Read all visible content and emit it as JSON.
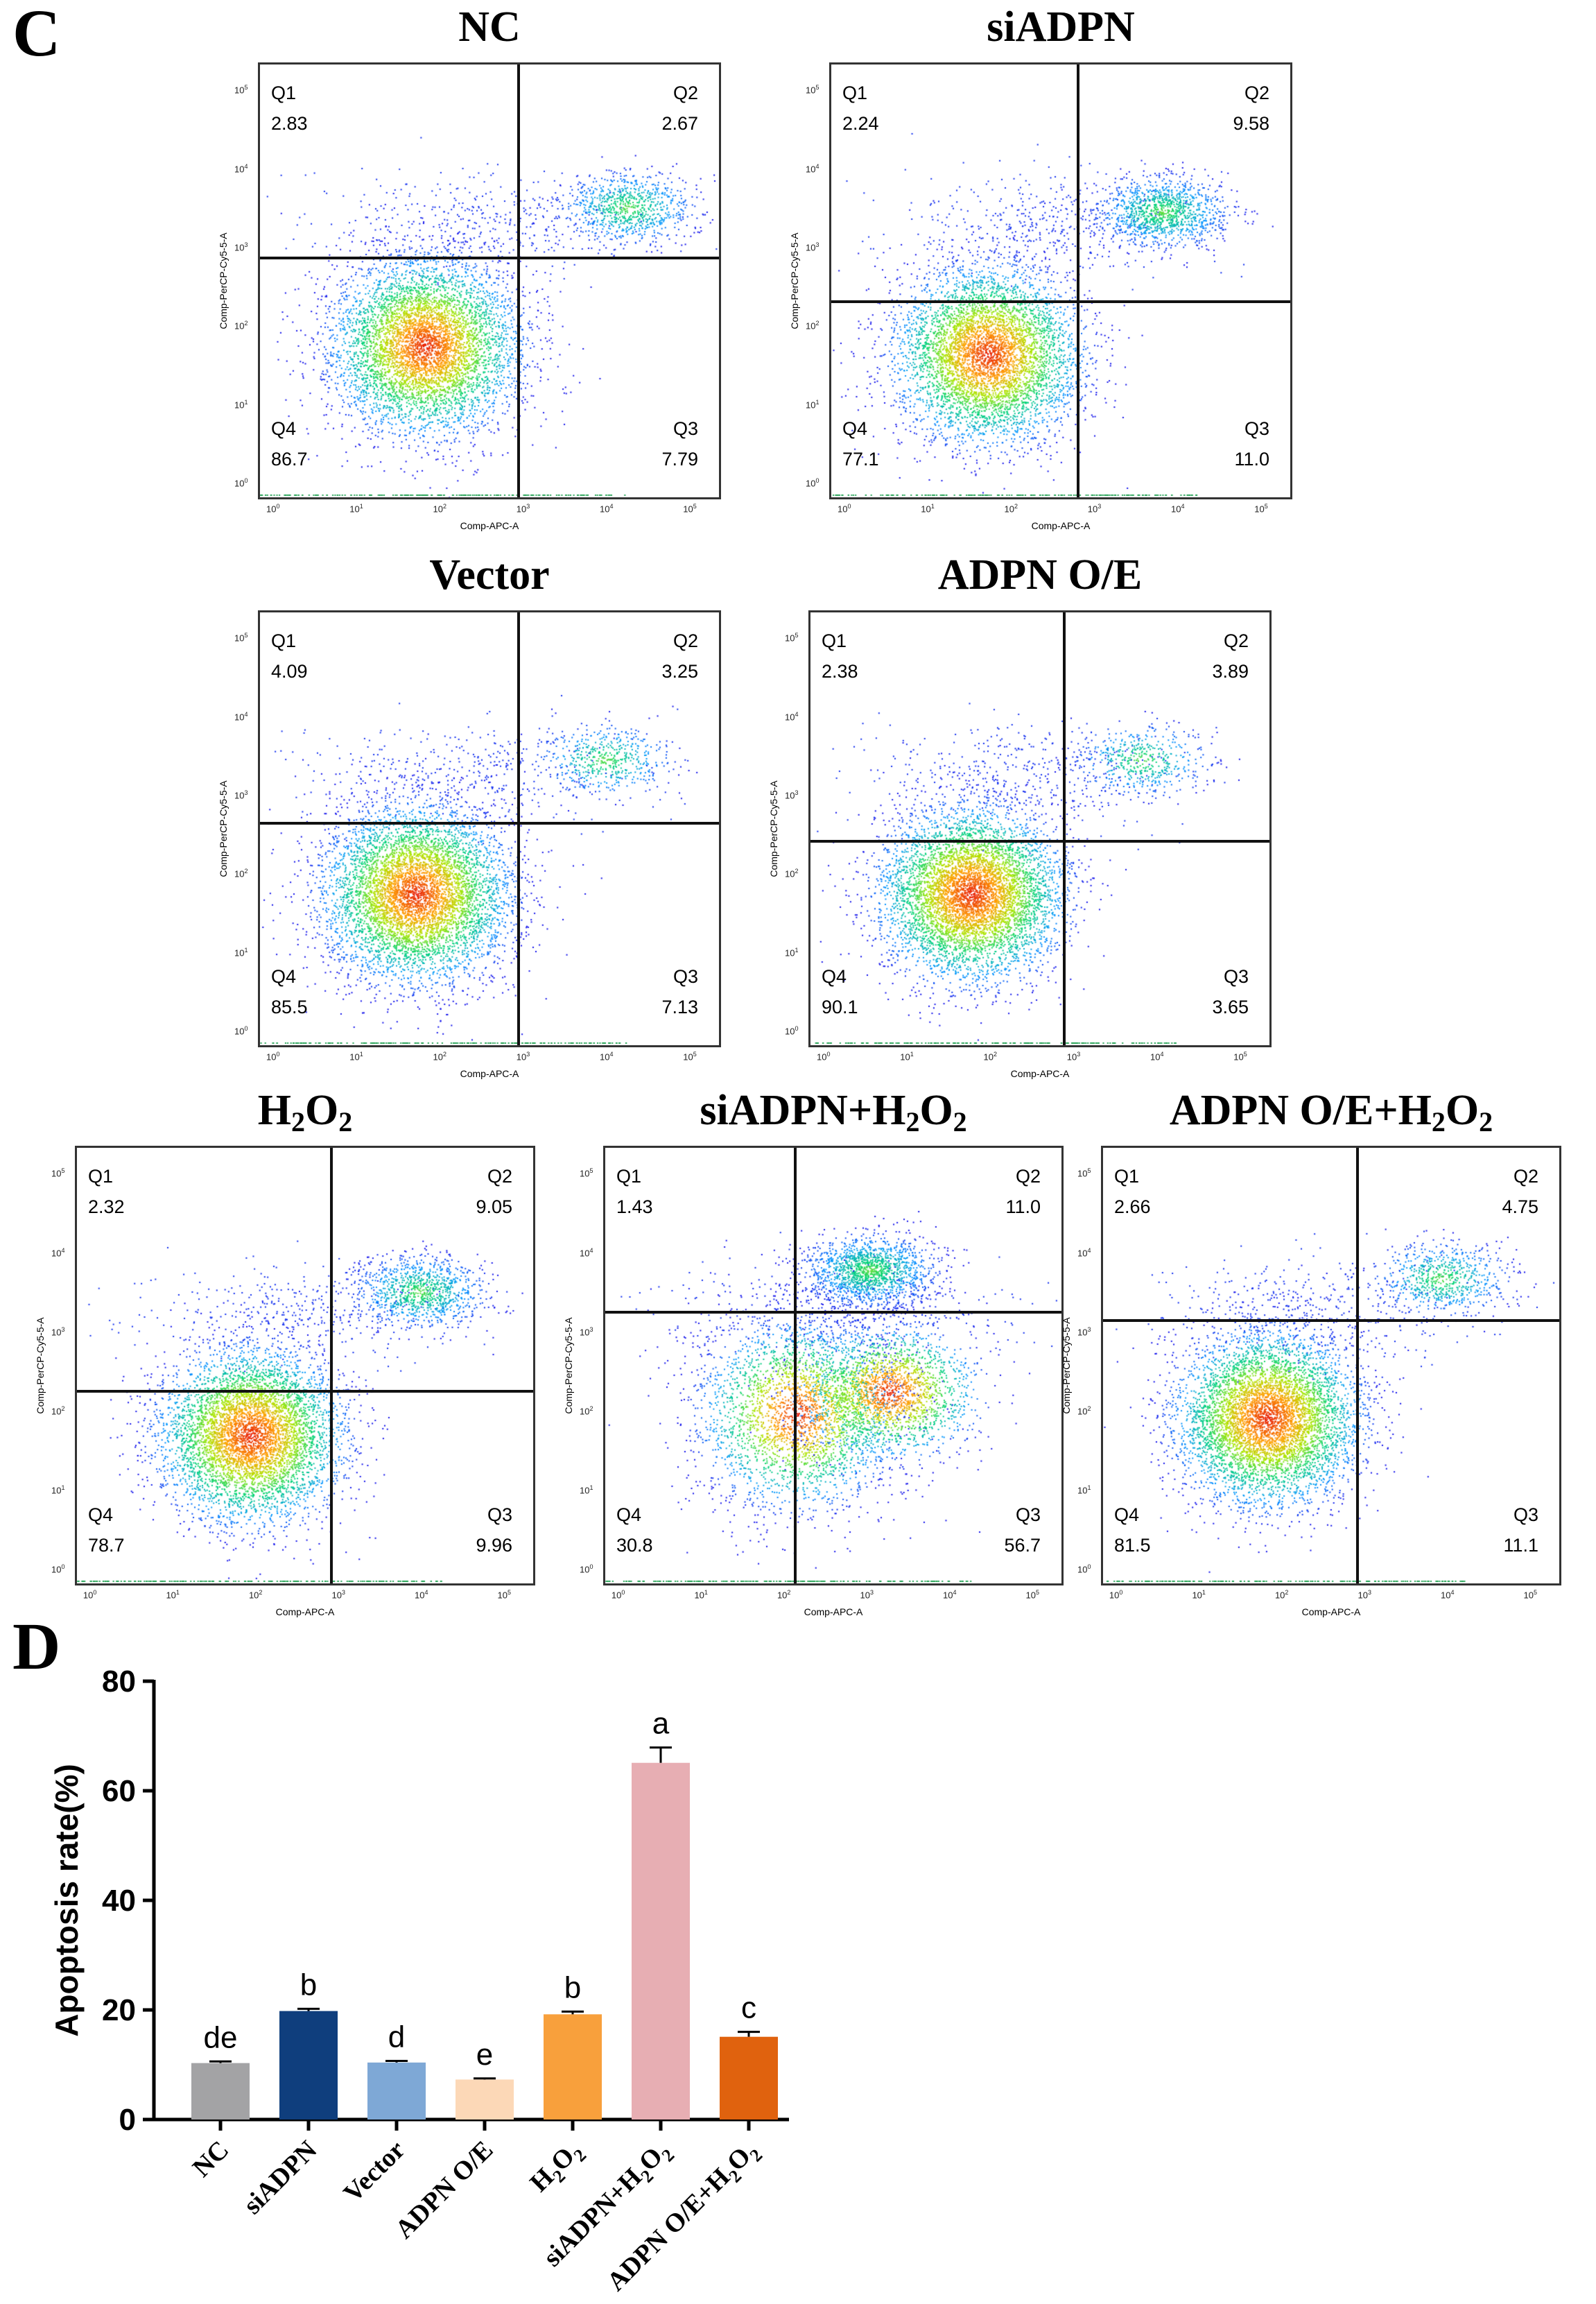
{
  "panel_c_label": "C",
  "panel_d_label": "D",
  "flow": {
    "x_axis_label": "Comp-APC-A",
    "y_axis_label": "Comp-PerCP-Cy5-5-A",
    "tick_exponents": [
      "0",
      "1",
      "2",
      "3",
      "4",
      "5"
    ],
    "tick_base": "10",
    "quadrant_names": [
      "Q1",
      "Q2",
      "Q3",
      "Q4"
    ],
    "plots": [
      {
        "title": "NC",
        "title_sub": null,
        "q1": "2.83",
        "q2": "2.67",
        "q3": "7.79",
        "q4": "86.7"
      },
      {
        "title": "siADPN",
        "title_sub": null,
        "q1": "2.24",
        "q2": "9.58",
        "q3": "11.0",
        "q4": "77.1"
      },
      {
        "title": "Vector",
        "title_sub": null,
        "q1": "4.09",
        "q2": "3.25",
        "q3": "7.13",
        "q4": "85.5"
      },
      {
        "title": "ADPN O/E",
        "title_sub": null,
        "q1": "2.38",
        "q2": "3.89",
        "q3": "3.65",
        "q4": "90.1"
      },
      {
        "title": "H2O2",
        "title_sub": true,
        "q1": "2.32",
        "q2": "9.05",
        "q3": "9.96",
        "q4": "78.7"
      },
      {
        "title": "siADPN+H2O2",
        "title_sub": true,
        "q1": "1.43",
        "q2": "11.0",
        "q3": "56.7",
        "q4": "30.8"
      },
      {
        "title": "ADPN O/E+H2O2",
        "title_sub": true,
        "q1": "2.66",
        "q2": "4.75",
        "q3": "11.1",
        "q4": "81.5"
      }
    ]
  },
  "colors": {
    "NC": "#a3a3a5",
    "siADPN": "#0f3e7d",
    "Vector": "#7ea8d6",
    "ADPN O/E": "#fcd8b7",
    "H2O2": "#f8a03c",
    "siADPN+H2O2": "#e7aeb3",
    "ADPN O/E+H2O2": "#e0620e"
  },
  "chart_data": {
    "type": "bar",
    "categories": [
      "NC",
      "siADPN",
      "Vector",
      "ADPN O/E",
      "H2O2",
      "siADPN+H2O2",
      "ADPN O/E+H2O2"
    ],
    "values": [
      10.3,
      19.8,
      10.4,
      7.3,
      19.2,
      65.1,
      15.1
    ],
    "errors": [
      0.3,
      0.4,
      0.3,
      0.2,
      0.5,
      2.8,
      0.9
    ],
    "letters": [
      "de",
      "b",
      "d",
      "e",
      "b",
      "a",
      "c"
    ],
    "title": "",
    "xlabel": "",
    "ylabel": "Apoptosis rate(%)",
    "ylim": [
      0,
      80
    ],
    "yticks": [
      0,
      20,
      40,
      60,
      80
    ],
    "grid": false
  }
}
